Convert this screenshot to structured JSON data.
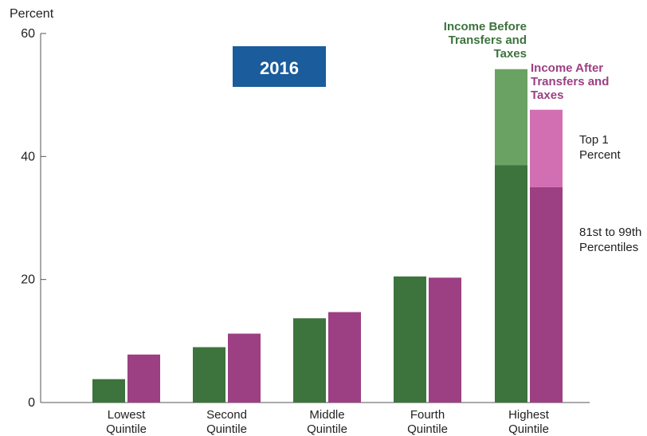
{
  "chart_data": {
    "type": "bar",
    "ylabel": "Percent",
    "ylim": [
      0,
      60
    ],
    "yticks": [
      0,
      20,
      40,
      60
    ],
    "grid": false,
    "badge": "2016",
    "categories": [
      [
        "Lowest",
        "Quintile"
      ],
      [
        "Second",
        "Quintile"
      ],
      [
        "Middle",
        "Quintile"
      ],
      [
        "Fourth",
        "Quintile"
      ],
      [
        "Highest",
        "Quintile"
      ]
    ],
    "series": [
      {
        "name": [
          "Income Before",
          "Transfers and",
          "Taxes"
        ],
        "color": "#3d733d",
        "values": [
          3.8,
          9.0,
          13.7,
          20.5,
          54.2
        ],
        "highest_split": {
          "lower": 38.6,
          "upper_color": "#6aa263"
        }
      },
      {
        "name": [
          "Income After",
          "Transfers and",
          "Taxes"
        ],
        "color": "#9c3f83",
        "values": [
          7.8,
          11.2,
          14.7,
          20.3,
          47.6
        ],
        "highest_split": {
          "lower": 35.0,
          "upper_color": "#d26eb2"
        }
      }
    ],
    "segment_labels": {
      "top": [
        "Top 1",
        "Percent"
      ],
      "bottom": [
        "81st to 99th",
        "Percentiles"
      ]
    }
  }
}
